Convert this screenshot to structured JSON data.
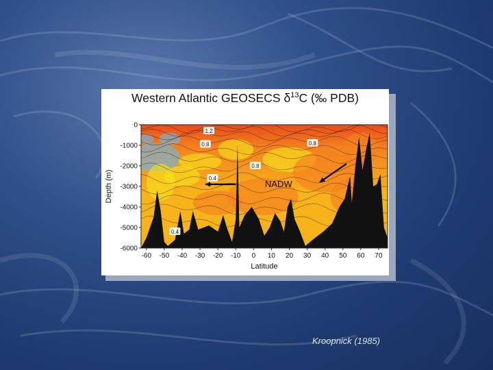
{
  "credit": "Kroopnick (1985)",
  "chart_data": {
    "type": "heatmap",
    "title_prefix": "Western Atlantic GEOSECS ",
    "title_symbol": "δ",
    "title_superscript": "13",
    "title_suffix": "C (‰ PDB)",
    "xlabel": "Latitude",
    "ylabel": "Depth (m)",
    "xlim": [
      -63,
      75
    ],
    "ylim": [
      -6000,
      0
    ],
    "x_ticks": [
      -60,
      -50,
      -40,
      -30,
      -20,
      -10,
      0,
      10,
      20,
      30,
      40,
      50,
      60,
      70
    ],
    "y_ticks": [
      0,
      -1000,
      -2000,
      -3000,
      -4000,
      -5000,
      -6000
    ],
    "contour_labels": [
      {
        "text": "1.2",
        "lat": -25,
        "depth": -300
      },
      {
        "text": "0.8",
        "lat": -27,
        "depth": -950
      },
      {
        "text": "0.8",
        "lat": 33,
        "depth": -900
      },
      {
        "text": "0.8",
        "lat": 1,
        "depth": -2000
      },
      {
        "text": "0.4",
        "lat": -23,
        "depth": -2600
      },
      {
        "text": "0.4",
        "lat": -44,
        "depth": -5200
      }
    ],
    "annotations": [
      {
        "text": "NADW",
        "lat": 14,
        "depth": -2900
      }
    ],
    "arrows": [
      {
        "from_lat": -10,
        "from_depth": -2900,
        "to_lat": -27,
        "to_depth": -2900
      },
      {
        "from_lat": 52,
        "from_depth": -1900,
        "to_lat": 37,
        "to_depth": -2800
      }
    ],
    "bathymetry": [
      [
        -63,
        -6000
      ],
      [
        -60,
        -5500
      ],
      [
        -56,
        -4500
      ],
      [
        -54,
        -3200
      ],
      [
        -52,
        -4200
      ],
      [
        -50,
        -5700
      ],
      [
        -48,
        -5900
      ],
      [
        -44,
        -5600
      ],
      [
        -41,
        -4200
      ],
      [
        -39,
        -5300
      ],
      [
        -36,
        -5100
      ],
      [
        -34,
        -4200
      ],
      [
        -31,
        -5100
      ],
      [
        -28,
        -5000
      ],
      [
        -25,
        -4900
      ],
      [
        -20,
        -5200
      ],
      [
        -17,
        -4400
      ],
      [
        -15,
        -5000
      ],
      [
        -12,
        -5700
      ],
      [
        -10,
        -4600
      ],
      [
        -9,
        -1000
      ],
      [
        -8,
        -5000
      ],
      [
        -5,
        -4400
      ],
      [
        -1,
        -4000
      ],
      [
        3,
        -4600
      ],
      [
        6,
        -5400
      ],
      [
        9,
        -5000
      ],
      [
        12,
        -4300
      ],
      [
        15,
        -4700
      ],
      [
        17,
        -5200
      ],
      [
        19,
        -4000
      ],
      [
        21,
        -3600
      ],
      [
        23,
        -4600
      ],
      [
        26,
        -5200
      ],
      [
        29,
        -5900
      ],
      [
        33,
        -5600
      ],
      [
        39,
        -5200
      ],
      [
        44,
        -4800
      ],
      [
        48,
        -4000
      ],
      [
        51,
        -3600
      ],
      [
        54,
        -2500
      ],
      [
        55,
        -3800
      ],
      [
        57,
        -2000
      ],
      [
        59,
        -600
      ],
      [
        61,
        -2200
      ],
      [
        63,
        -1200
      ],
      [
        65,
        -400
      ],
      [
        67,
        -3000
      ],
      [
        69,
        -2900
      ],
      [
        71,
        -2400
      ],
      [
        73,
        -5000
      ],
      [
        75,
        -5500
      ]
    ],
    "colorscale": [
      "#6fb6e2",
      "#f6e01c",
      "#f7b31a",
      "#f4811f",
      "#e74c1c"
    ]
  }
}
